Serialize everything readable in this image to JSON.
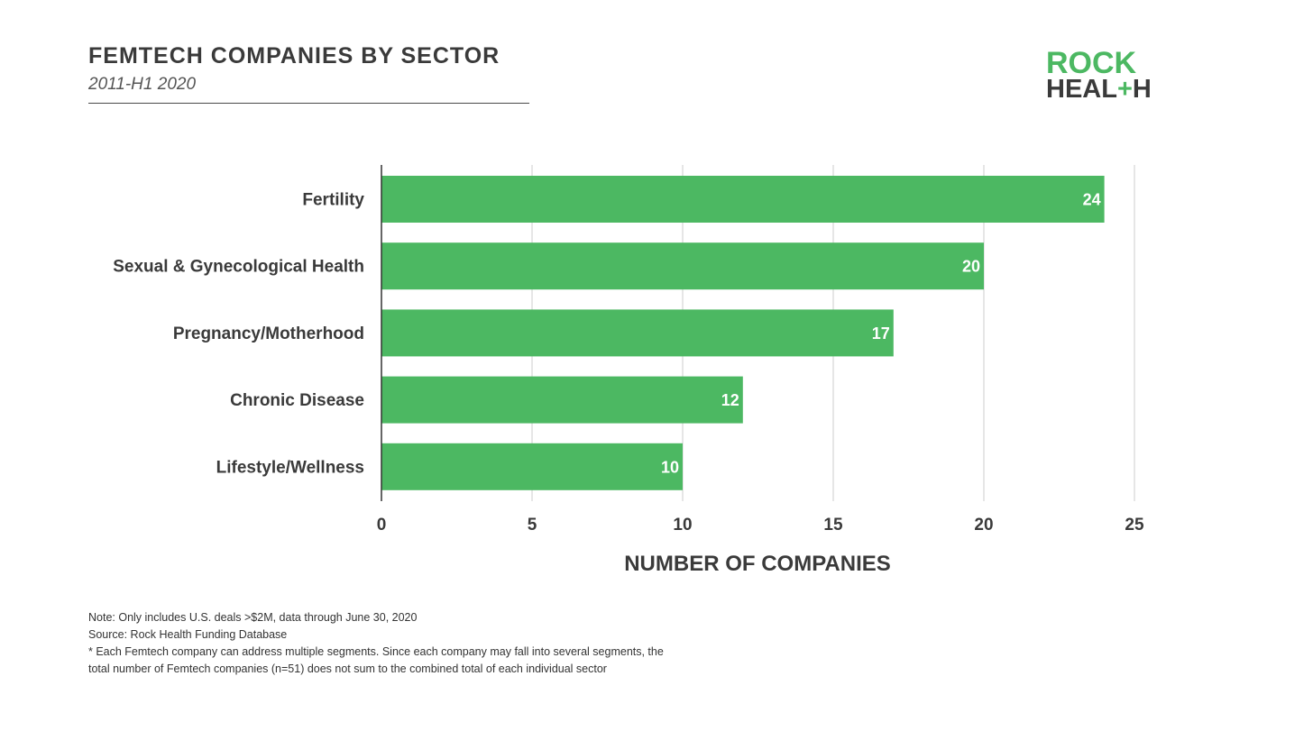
{
  "header": {
    "title": "FEMTECH COMPANIES BY SECTOR",
    "subtitle": "2011-H1 2020"
  },
  "logo": {
    "line1": "ROCK",
    "line2_a": "HEAL",
    "line2_plus": "+",
    "line2_b": "H",
    "brand_green": "#4cb862"
  },
  "chart_data": {
    "type": "bar",
    "orientation": "horizontal",
    "categories": [
      "Fertility",
      "Sexual & Gynecological Health",
      "Pregnancy/Motherhood",
      "Chronic Disease",
      "Lifestyle/Wellness"
    ],
    "values": [
      24,
      20,
      17,
      12,
      10
    ],
    "data_labels": [
      "24",
      "20",
      "17",
      "12",
      "10"
    ],
    "xlabel": "NUMBER OF COMPANIES",
    "ylabel": "",
    "xlim": [
      0,
      25
    ],
    "xticks": [
      0,
      5,
      10,
      15,
      20,
      25
    ],
    "xtick_labels": [
      "0",
      "5",
      "10",
      "15",
      "20",
      "25"
    ],
    "grid": "vertical",
    "legend": "none",
    "bar_color": "#4cb862",
    "label_color": "#ffffff"
  },
  "footnotes": {
    "note": "Note: Only includes U.S. deals >$2M, data through June 30, 2020",
    "source": "Source: Rock Health Funding Database",
    "asterisk_line1": "* Each Femtech company can address multiple segments. Since each company may fall into several segments, the",
    "asterisk_line2": "total number of Femtech companies (n=51) does not sum to the combined total of each individual sector"
  }
}
